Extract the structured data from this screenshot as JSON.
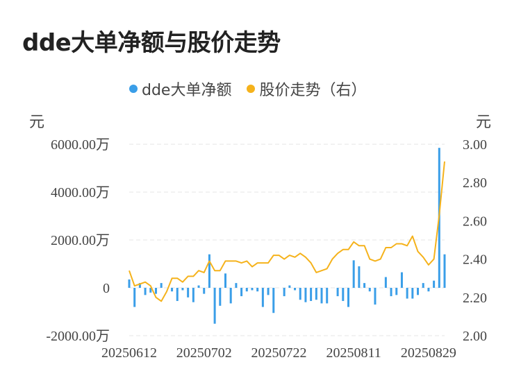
{
  "title": "dde大单净额与股价走势",
  "legend": {
    "series1": "dde大单净额",
    "series2": "股价走势（右）"
  },
  "left_unit": "元",
  "right_unit": "元",
  "colors": {
    "bar": "#3a9ee8",
    "line": "#f5b21b",
    "grid": "#e6e6e6",
    "text": "#444444"
  },
  "chart_data": {
    "type": "bar+line",
    "y_left": {
      "lim": [
        -2000,
        6000
      ],
      "ticks": [
        -2000,
        0,
        2000,
        4000,
        6000
      ],
      "tick_labels": [
        "-2000.00万",
        "0",
        "2000.00万",
        "4000.00万",
        "6000.00万"
      ]
    },
    "y_right": {
      "lim": [
        2.0,
        3.0
      ],
      "ticks": [
        2.0,
        2.2,
        2.4,
        2.6,
        2.8,
        3.0
      ],
      "tick_labels": [
        "2.00",
        "2.20",
        "2.40",
        "2.60",
        "2.80",
        "3.00"
      ]
    },
    "x_tick_labels": [
      "20250612",
      "20250702",
      "20250722",
      "20250811",
      "20250829"
    ],
    "x_tick_index": [
      0,
      14,
      28,
      42,
      56
    ],
    "series": [
      {
        "name": "dde大单净额",
        "type": "bar",
        "values": [
          350,
          -800,
          200,
          -300,
          -200,
          -250,
          200,
          0,
          -150,
          -550,
          -100,
          -400,
          -600,
          100,
          -250,
          1400,
          -1500,
          -750,
          600,
          -650,
          200,
          -350,
          -150,
          -100,
          -150,
          -800,
          -300,
          -1050,
          0,
          -350,
          100,
          -100,
          -500,
          -600,
          -550,
          -500,
          -650,
          -650,
          0,
          -350,
          -550,
          -800,
          1150,
          900,
          200,
          -150,
          -700,
          0,
          450,
          -350,
          -300,
          650,
          -450,
          -450,
          -300,
          200,
          -150,
          300,
          5850,
          1400
        ]
      },
      {
        "name": "股价走势（右）",
        "type": "line",
        "values": [
          2.34,
          2.26,
          2.27,
          2.28,
          2.26,
          2.2,
          2.18,
          2.23,
          2.3,
          2.3,
          2.28,
          2.31,
          2.31,
          2.34,
          2.33,
          2.39,
          2.34,
          2.34,
          2.39,
          2.39,
          2.39,
          2.38,
          2.39,
          2.36,
          2.38,
          2.38,
          2.38,
          2.42,
          2.42,
          2.4,
          2.42,
          2.41,
          2.43,
          2.41,
          2.38,
          2.33,
          2.34,
          2.35,
          2.4,
          2.43,
          2.45,
          2.45,
          2.49,
          2.47,
          2.47,
          2.4,
          2.39,
          2.4,
          2.46,
          2.46,
          2.48,
          2.48,
          2.47,
          2.52,
          2.44,
          2.41,
          2.37,
          2.4,
          2.63,
          2.91
        ]
      }
    ]
  }
}
